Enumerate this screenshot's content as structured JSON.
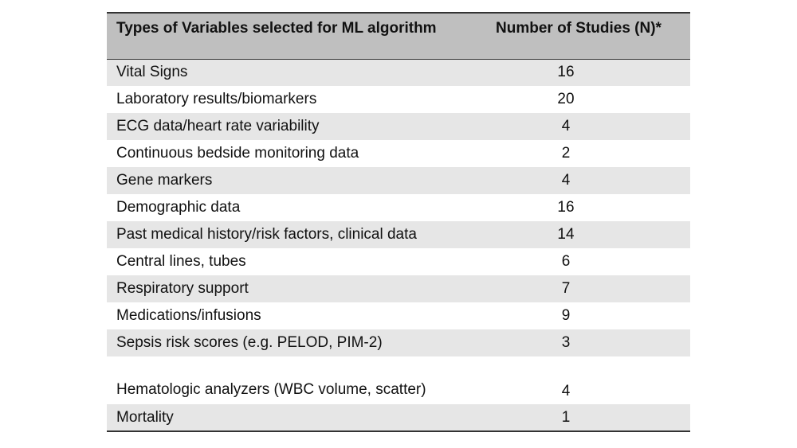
{
  "table": {
    "headers": {
      "variable_type": "Types of Variables selected for ML algorithm",
      "num_studies": "Number of Studies (N)*"
    },
    "rows": [
      {
        "label": "Vital Signs",
        "value": "16"
      },
      {
        "label": "Laboratory results/biomarkers",
        "value": "20"
      },
      {
        "label": "ECG data/heart rate variability",
        "value": "4"
      },
      {
        "label": "Continuous bedside monitoring data",
        "value": "2"
      },
      {
        "label": "Gene markers",
        "value": "4"
      },
      {
        "label": "Demographic data",
        "value": "16"
      },
      {
        "label": "Past medical history/risk factors, clinical data",
        "value": "14"
      },
      {
        "label": "Central lines, tubes",
        "value": "6"
      },
      {
        "label": "Respiratory support",
        "value": "7"
      },
      {
        "label": "Medications/infusions",
        "value": "9"
      },
      {
        "label": "Sepsis risk scores (e.g. PELOD, PIM-2)",
        "value": "3"
      },
      {
        "label": "Hematologic analyzers (WBC volume, scatter)",
        "value": "4"
      },
      {
        "label": "Mortality",
        "value": "1"
      }
    ]
  }
}
